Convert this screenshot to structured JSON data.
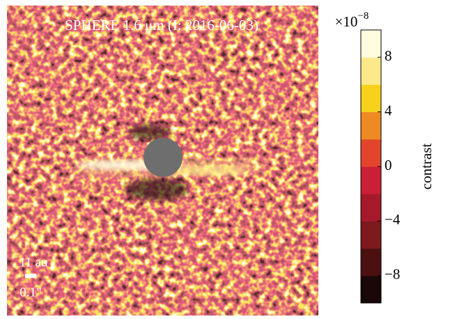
{
  "chart_data": {
    "type": "image",
    "title": "SPHERE 1.6 μm (I: 2016-06-03)",
    "colorbar": {
      "label": "contrast",
      "multiplier": "×10",
      "exponent": "−8",
      "clim": [
        -10,
        10
      ],
      "ticks": [
        {
          "value": -8,
          "label": "−8"
        },
        {
          "value": -4,
          "label": "−4"
        },
        0,
        4,
        8
      ],
      "colors": [
        "#1a0707",
        "#4a1110",
        "#7c1a1e",
        "#a5192b",
        "#cb1f36",
        "#e3452c",
        "#ee8a24",
        "#f7d11a",
        "#fde98a",
        "#fffbdf"
      ]
    },
    "scale_bar": {
      "top_label": "11 au",
      "bottom_label": "0.1\""
    }
  }
}
